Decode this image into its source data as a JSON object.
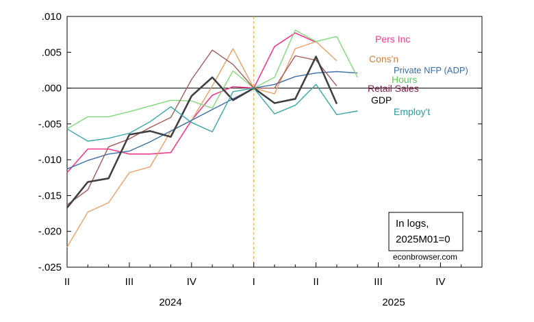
{
  "chart_data": {
    "type": "line",
    "x_periods": [
      "2024Q2",
      "2024M05",
      "2024M06",
      "2024Q3",
      "2024M08",
      "2024M09",
      "2024Q4",
      "2024M11",
      "2024M12",
      "2025Q1",
      "2025M02",
      "2025M03",
      "2025Q2",
      "2025M05",
      "2025M06"
    ],
    "ylim": [
      -0.025,
      0.01
    ],
    "yticks": [
      ".010",
      ".005",
      ".000",
      "-.005",
      "-.010",
      "-.015",
      "-.020",
      "-.025"
    ],
    "ytick_values": [
      0.01,
      0.005,
      0.0,
      -0.005,
      -0.01,
      -0.015,
      -0.02,
      -0.025
    ],
    "quarter_ticks": [
      "II",
      "III",
      "IV",
      "I",
      "II",
      "III",
      "IV"
    ],
    "years": [
      "2024",
      "2025"
    ],
    "reference_line": "2025M01",
    "annotation_lines": [
      "In logs,",
      "2025M01=0"
    ],
    "credit": "econbrowser.com",
    "series": [
      {
        "name": "Pers Inc",
        "color": "#ee3a8c",
        "width": 1.6,
        "values": [
          -0.0118,
          -0.0085,
          -0.0085,
          -0.0092,
          -0.0092,
          -0.009,
          -0.0045,
          -0.001,
          0.0002,
          0.0,
          0.0058,
          0.0077,
          0.0064,
          null,
          null
        ]
      },
      {
        "name": "Cons'n",
        "color": "#e8a06a",
        "width": 1.4,
        "values": [
          -0.0222,
          -0.0173,
          -0.016,
          -0.0118,
          -0.011,
          -0.006,
          -0.0045,
          0.0003,
          0.0055,
          0.0,
          -0.0008,
          0.0055,
          0.0065,
          0.0038,
          null
        ]
      },
      {
        "name": "Private NFP (ADP)",
        "color": "#3a6ea5",
        "width": 1.4,
        "values": [
          -0.0113,
          -0.0101,
          -0.0092,
          -0.0088,
          -0.0075,
          -0.006,
          -0.0045,
          -0.003,
          -0.0015,
          0.0,
          0.0005,
          0.0016,
          0.0021,
          0.0023,
          0.0021
        ]
      },
      {
        "name": "Hours",
        "color": "#7fd87a",
        "width": 1.4,
        "values": [
          -0.0057,
          -0.004,
          -0.004,
          -0.0033,
          -0.0025,
          -0.0017,
          -0.0018,
          -0.0028,
          0.0024,
          0.0,
          0.0015,
          0.0081,
          0.0065,
          0.0072,
          0.0015
        ]
      },
      {
        "name": "Retail Sales",
        "color": "#a05a5a",
        "width": 1.4,
        "values": [
          -0.0163,
          -0.0142,
          -0.0082,
          -0.0071,
          -0.0055,
          -0.0041,
          0.0012,
          0.0053,
          0.0033,
          0.0,
          0.0,
          0.0045,
          0.0039,
          0.0003,
          null
        ]
      },
      {
        "name": "GDP",
        "color": "#404040",
        "width": 2.6,
        "values": [
          -0.0167,
          -0.0131,
          -0.0126,
          -0.0065,
          -0.006,
          -0.0068,
          -0.0011,
          0.0015,
          -0.0017,
          0.0,
          -0.0021,
          -0.0015,
          0.0044,
          -0.0022,
          null
        ]
      },
      {
        "name": "Employ't",
        "color": "#3aa6a6",
        "width": 1.4,
        "values": [
          -0.0057,
          -0.0074,
          -0.007,
          -0.0063,
          -0.0047,
          -0.0026,
          -0.0048,
          -0.0061,
          -0.0005,
          0.0,
          -0.0036,
          -0.0024,
          0.0005,
          -0.0037,
          -0.0032
        ]
      }
    ],
    "label_texts": {
      "pers_inc": "Pers Inc",
      "consn": "Cons'n",
      "private_nfp": "Private NFP (ADP)",
      "hours": "Hours",
      "retail_sales": "Retail Sales",
      "gdp": "GDP",
      "employt": "Employ't"
    }
  }
}
